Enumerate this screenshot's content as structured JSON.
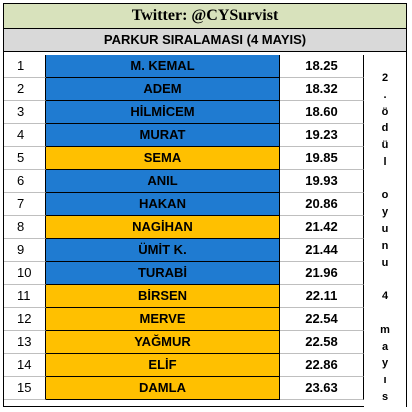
{
  "title": "Twitter: @CYSurvist",
  "subtitle": "PARKUR SIRALAMASI (4 MAYIS)",
  "colors": {
    "blue": "#1f7bd1",
    "gold": "#ffc000",
    "title_bg": "#d8e2bc",
    "subtitle_bg": "#d9d9d9"
  },
  "rows": [
    {
      "rank": "1",
      "name": "M. KEMAL",
      "time": "18.25",
      "color": "blue"
    },
    {
      "rank": "2",
      "name": "ADEM",
      "time": "18.32",
      "color": "blue"
    },
    {
      "rank": "3",
      "name": "HİLMİCEM",
      "time": "18.60",
      "color": "blue"
    },
    {
      "rank": "4",
      "name": "MURAT",
      "time": "19.23",
      "color": "blue"
    },
    {
      "rank": "5",
      "name": "SEMA",
      "time": "19.85",
      "color": "gold"
    },
    {
      "rank": "6",
      "name": "ANIL",
      "time": "19.93",
      "color": "blue"
    },
    {
      "rank": "7",
      "name": "HAKAN",
      "time": "20.86",
      "color": "blue"
    },
    {
      "rank": "8",
      "name": "NAGİHAN",
      "time": "21.42",
      "color": "gold"
    },
    {
      "rank": "9",
      "name": "ÜMİT K.",
      "time": "21.44",
      "color": "blue"
    },
    {
      "rank": "10",
      "name": "TURABİ",
      "time": "21.96",
      "color": "blue"
    },
    {
      "rank": "11",
      "name": "BİRSEN",
      "time": "22.11",
      "color": "gold"
    },
    {
      "rank": "12",
      "name": "MERVE",
      "time": "22.54",
      "color": "gold"
    },
    {
      "rank": "13",
      "name": "YAĞMUR",
      "time": "22.58",
      "color": "gold"
    },
    {
      "rank": "14",
      "name": "ELİF",
      "time": "22.86",
      "color": "gold"
    },
    {
      "rank": "15",
      "name": "DAMLA",
      "time": "23.63",
      "color": "gold"
    }
  ],
  "side_note": [
    "2",
    ".",
    "ö",
    "d",
    "ü",
    "l",
    "",
    "o",
    "y",
    "u",
    "n",
    "u",
    "",
    "4",
    "",
    "m",
    "a",
    "y",
    "ı",
    "s"
  ]
}
